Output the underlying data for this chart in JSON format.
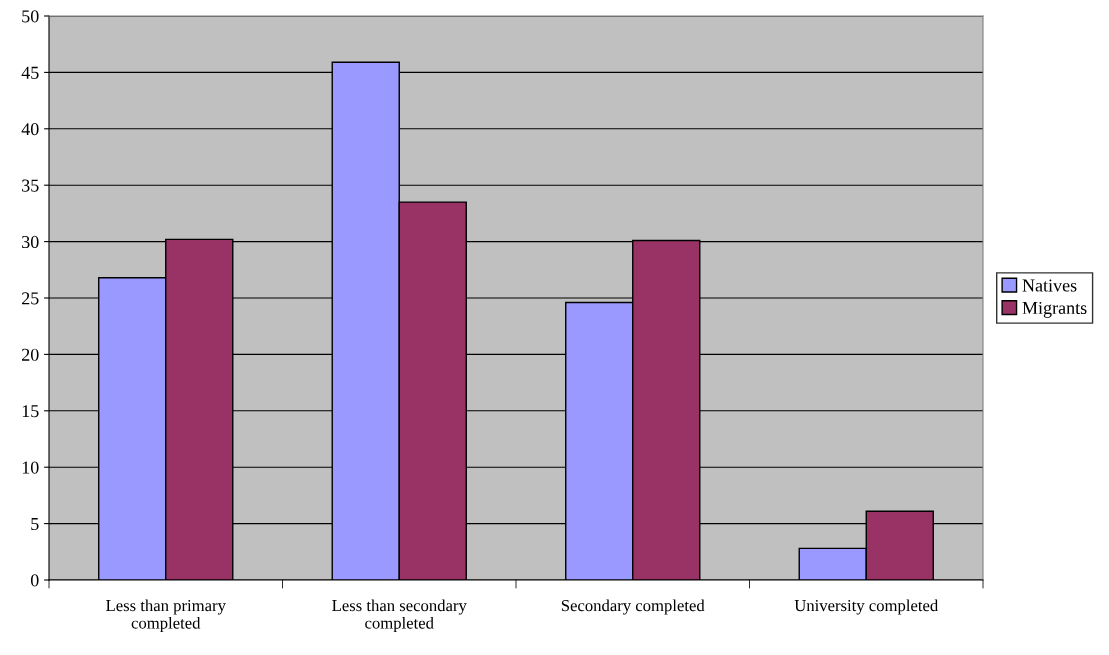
{
  "chart_data": {
    "type": "bar",
    "categories": [
      "Less than primary\ncompleted",
      "Less than secondary\ncompleted",
      "Secondary completed",
      "University completed"
    ],
    "series": [
      {
        "name": "Natives",
        "color": "#9999ff",
        "values": [
          26.8,
          45.9,
          24.6,
          2.8
        ]
      },
      {
        "name": "Migrants",
        "color": "#993366",
        "values": [
          30.2,
          33.5,
          30.1,
          6.1
        ]
      }
    ],
    "ylim": [
      0,
      50
    ],
    "yticks": [
      0,
      5,
      10,
      15,
      20,
      25,
      30,
      35,
      40,
      45,
      50
    ],
    "grid": "y",
    "legend": "right"
  }
}
